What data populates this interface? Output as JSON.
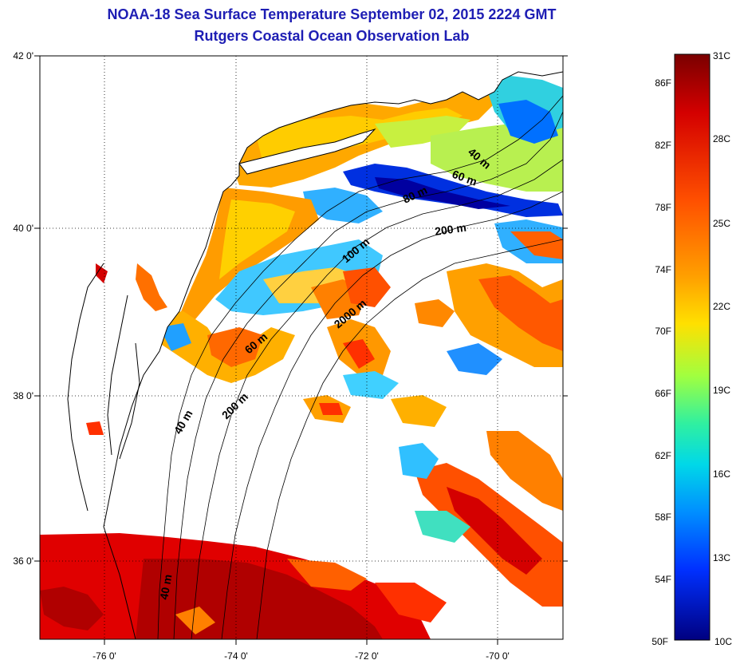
{
  "header": {
    "title_line1": "NOAA-18 Sea Surface Temperature September 02, 2015 2224 GMT",
    "title_line2": "Rutgers Coastal Ocean Observation Lab"
  },
  "map": {
    "lat_labels": [
      "42 0'",
      "40 0'",
      "38 0'",
      "36 0'"
    ],
    "lon_labels": [
      "-76 0'",
      "-74 0'",
      "-72 0'",
      "-70 0'"
    ],
    "contour_labels": [
      "40 m",
      "60 m",
      "80 m",
      "200 m",
      "100 m",
      "2000 m",
      "60 m",
      "200 m",
      "40 m",
      "40 m"
    ],
    "colors": {
      "land": "#ffffff",
      "no_data": "#ffffff",
      "coastline": "#000000",
      "gridline": "#000000"
    }
  },
  "colorbar": {
    "fahrenheit_labels": [
      "86F",
      "82F",
      "78F",
      "74F",
      "70F",
      "66F",
      "62F",
      "58F",
      "54F",
      "50F"
    ],
    "celsius_labels": [
      "31C",
      "28C",
      "25C",
      "22C",
      "19C",
      "16C",
      "13C",
      "10C"
    ],
    "colors": [
      "#7a0000",
      "#d40000",
      "#ff4a00",
      "#ff9a00",
      "#ffd800",
      "#c8ff30",
      "#50f080",
      "#00e0d0",
      "#00a0ff",
      "#0040ff",
      "#0000d0",
      "#00008a"
    ]
  }
}
